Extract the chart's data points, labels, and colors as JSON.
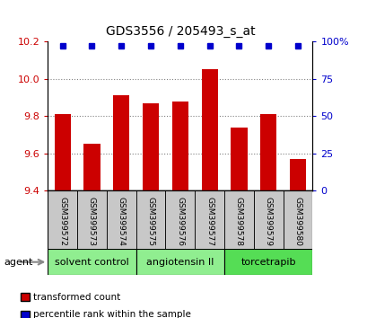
{
  "title": "GDS3556 / 205493_s_at",
  "samples": [
    "GSM399572",
    "GSM399573",
    "GSM399574",
    "GSM399575",
    "GSM399576",
    "GSM399577",
    "GSM399578",
    "GSM399579",
    "GSM399580"
  ],
  "bar_values": [
    9.81,
    9.65,
    9.91,
    9.87,
    9.88,
    10.05,
    9.74,
    9.81,
    9.57
  ],
  "percentile_values": [
    97,
    97,
    97,
    97,
    97,
    97,
    97,
    97,
    97
  ],
  "bar_color": "#CC0000",
  "percentile_color": "#0000CC",
  "ylim_left": [
    9.4,
    10.2
  ],
  "ylim_right": [
    0,
    100
  ],
  "left_yticks": [
    9.4,
    9.6,
    9.8,
    10.0,
    10.2
  ],
  "right_yticks": [
    0,
    25,
    50,
    75,
    100
  ],
  "right_yticklabels": [
    "0",
    "25",
    "50",
    "75",
    "100%"
  ],
  "grid_lines": [
    9.6,
    9.8,
    10.0
  ],
  "agents": [
    {
      "label": "solvent control",
      "start": 0,
      "end": 3,
      "color": "#90EE90"
    },
    {
      "label": "angiotensin II",
      "start": 3,
      "end": 6,
      "color": "#90EE90"
    },
    {
      "label": "torcetrapib",
      "start": 6,
      "end": 9,
      "color": "#55DD55"
    }
  ],
  "agent_label": "agent",
  "legend_bar_label": "transformed count",
  "legend_pct_label": "percentile rank within the sample",
  "bar_width": 0.55,
  "tick_label_area_color": "#C8C8C8",
  "pct_marker_size": 5
}
